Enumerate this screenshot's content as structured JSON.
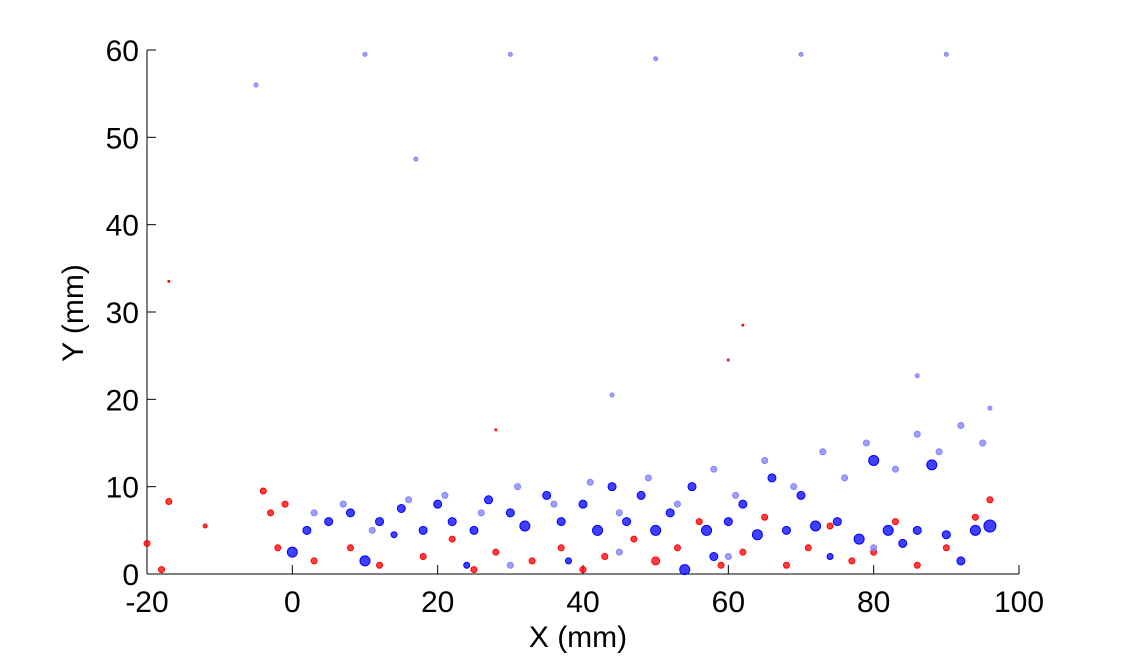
{
  "chart_data": {
    "type": "scatter",
    "xlabel": "X (mm)",
    "ylabel": "Y (mm)",
    "xlim": [
      -20,
      100
    ],
    "xticks": [
      -20,
      0,
      20,
      40,
      60,
      80,
      100
    ],
    "ylim": [
      0,
      60
    ],
    "yticks": [
      0,
      10,
      20,
      30,
      40,
      50,
      60
    ],
    "series": [
      {
        "color": "#ff0000",
        "x": [
          -20,
          -17,
          -18,
          -12,
          -4,
          -3,
          -2,
          -1,
          3,
          8,
          12,
          18,
          22,
          25,
          28,
          33,
          37,
          40,
          43,
          47,
          50,
          53,
          56,
          59,
          62,
          65,
          68,
          71,
          74,
          77,
          80,
          83,
          86,
          90,
          94,
          96,
          -17,
          62,
          60,
          28
        ],
        "values": [
          3.5,
          8.3,
          0.5,
          5.5,
          9.5,
          7,
          3,
          8,
          1.5,
          3,
          1,
          2,
          4,
          0.5,
          2.5,
          1.5,
          3,
          0.5,
          2,
          4,
          1.5,
          3,
          6,
          1,
          2.5,
          6.5,
          1,
          3,
          5.5,
          1.5,
          2.5,
          6,
          1,
          3,
          6.5,
          8.5,
          33.5,
          28.5,
          24.5,
          16.5
        ],
        "sizes": [
          3,
          3,
          3,
          2,
          3,
          3,
          3,
          3,
          3,
          3,
          3,
          3,
          3,
          3,
          3,
          3,
          3,
          3,
          3,
          3,
          4,
          3,
          3,
          3,
          3,
          3,
          3,
          3,
          3,
          3,
          3,
          3,
          3,
          3,
          3,
          3,
          1,
          1,
          1,
          1
        ]
      },
      {
        "color": "#8080ff",
        "x": [
          3,
          7,
          11,
          16,
          21,
          26,
          31,
          36,
          41,
          45,
          49,
          53,
          58,
          61,
          65,
          69,
          73,
          76,
          79,
          83,
          86,
          89,
          92,
          95,
          96,
          60,
          80,
          45,
          30,
          86,
          44,
          17,
          10,
          30,
          50,
          70,
          90,
          -5
        ],
        "values": [
          7,
          8,
          5,
          8.5,
          9,
          7,
          10,
          8,
          10.5,
          7,
          11,
          8,
          12,
          9,
          13,
          10,
          14,
          11,
          15,
          12,
          16,
          14,
          17,
          15,
          19,
          2,
          3,
          2.5,
          1,
          22.7,
          20.5,
          47.5,
          59.5,
          59.5,
          59,
          59.5,
          59.5,
          56
        ],
        "sizes": [
          3,
          3,
          3,
          3,
          3,
          3,
          3,
          3,
          3,
          3,
          3,
          3,
          3,
          3,
          3,
          3,
          3,
          3,
          3,
          3,
          3,
          3,
          3,
          3,
          2,
          3,
          3,
          3,
          3,
          2,
          2,
          2,
          2,
          2,
          2,
          2,
          2,
          2
        ]
      },
      {
        "color": "#0000ff",
        "x": [
          0,
          2,
          5,
          8,
          10,
          12,
          15,
          18,
          20,
          22,
          25,
          27,
          30,
          32,
          35,
          37,
          40,
          42,
          44,
          46,
          48,
          50,
          52,
          54,
          55,
          57,
          60,
          62,
          64,
          66,
          68,
          70,
          72,
          75,
          78,
          80,
          82,
          84,
          86,
          88,
          90,
          92,
          94,
          96,
          14,
          24,
          38,
          58,
          74
        ],
        "values": [
          2.5,
          5,
          6,
          7,
          1.5,
          6,
          7.5,
          5,
          8,
          6,
          5,
          8.5,
          7,
          5.5,
          9,
          6,
          8,
          5,
          10,
          6,
          9,
          5,
          7,
          0.5,
          10,
          5,
          6,
          8,
          4.5,
          11,
          5,
          9,
          5.5,
          6,
          4,
          13,
          5,
          3.5,
          5,
          12.5,
          4.5,
          1.5,
          5,
          5.5,
          4.5,
          1,
          1.5,
          2,
          2
        ],
        "sizes": [
          5,
          4,
          4,
          4,
          5,
          4,
          4,
          4,
          4,
          4,
          4,
          4,
          4,
          5,
          4,
          4,
          4,
          5,
          4,
          4,
          4,
          5,
          4,
          5,
          4,
          5,
          4,
          4,
          5,
          4,
          4,
          4,
          5,
          4,
          5,
          5,
          5,
          4,
          4,
          5,
          4,
          4,
          5,
          6,
          3,
          3,
          3,
          4,
          3
        ]
      }
    ]
  }
}
